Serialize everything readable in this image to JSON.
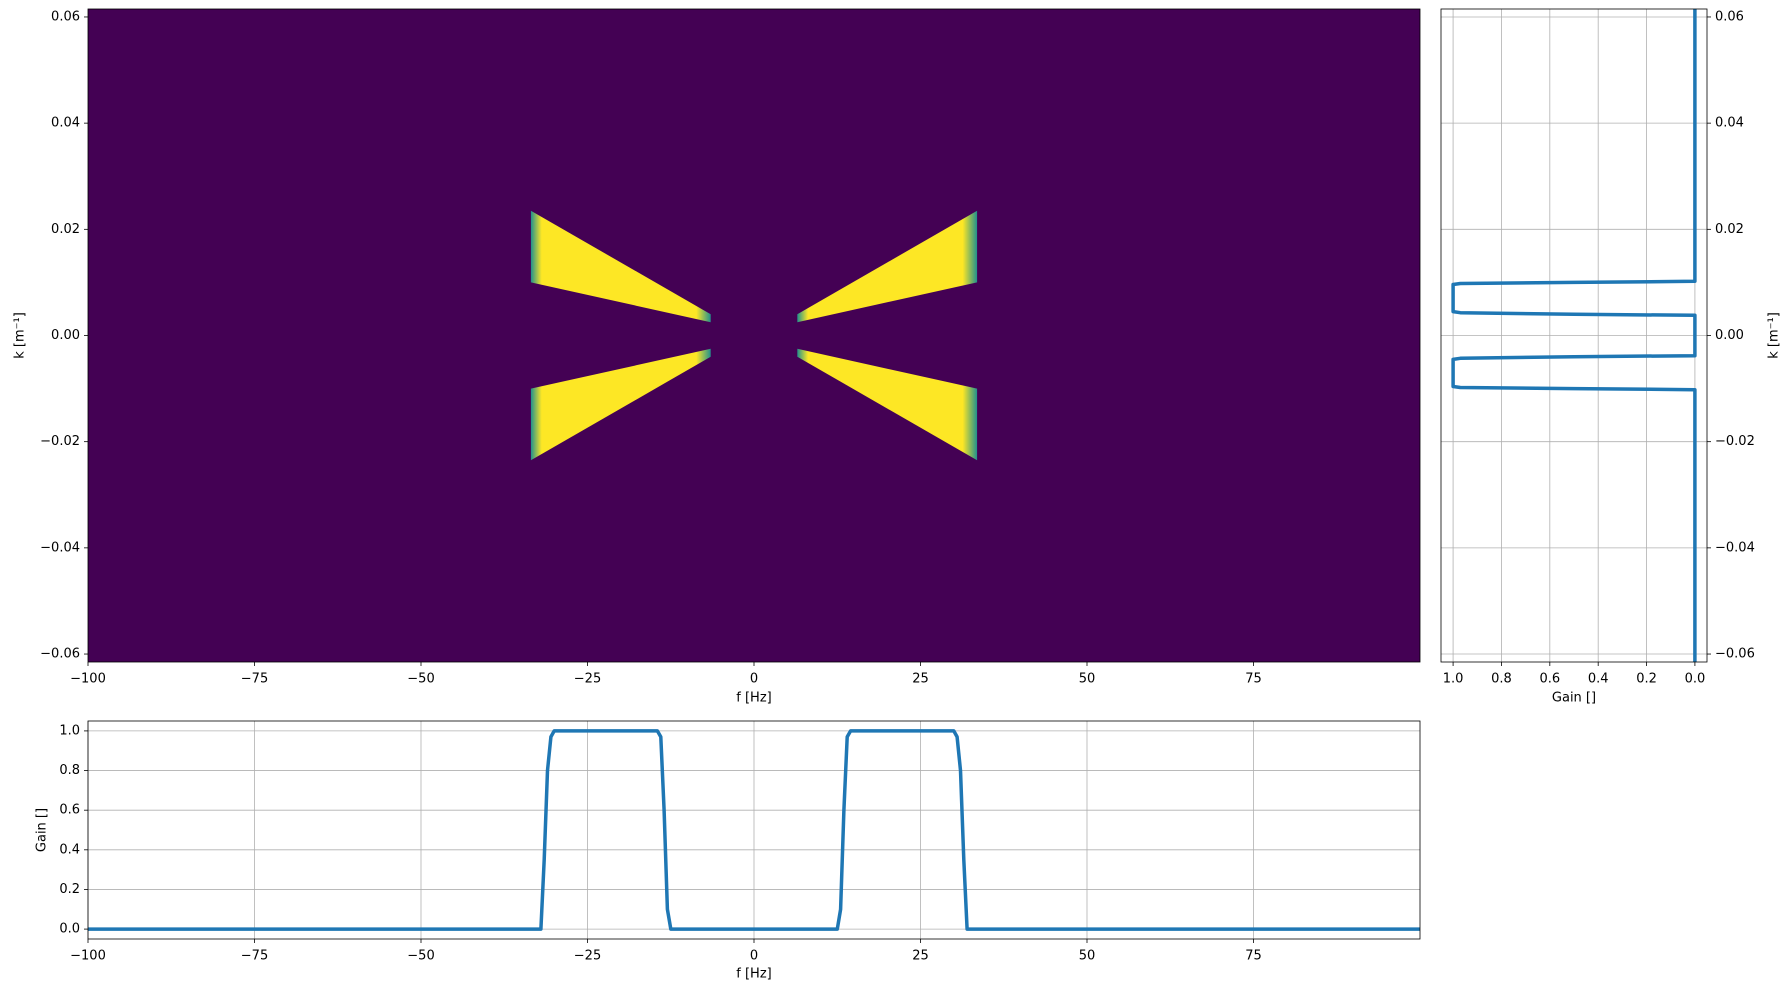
{
  "chart_data": [
    {
      "panel": "fk-filter-map",
      "type": "heatmap",
      "xlabel": "f [Hz]",
      "ylabel": "k [m⁻¹]",
      "xlim": [
        -100,
        100
      ],
      "ylim": [
        -0.0615,
        0.0615
      ],
      "xticks": [
        -100,
        -75,
        -50,
        -25,
        0,
        25,
        50,
        75
      ],
      "xtick_labels": [
        "−100",
        "−75",
        "−50",
        "−25",
        "0",
        "25",
        "50",
        "75"
      ],
      "yticks": [
        -0.06,
        -0.04,
        -0.02,
        0.0,
        0.02,
        0.04,
        0.06
      ],
      "ytick_labels": [
        "−0.06",
        "−0.04",
        "−0.02",
        "0.00",
        "0.02",
        "0.04",
        "0.06"
      ],
      "grid": false,
      "colormap": {
        "low": "#440154",
        "high": "#fde725",
        "edge_mid": "#21908d"
      },
      "regions": [
        {
          "vertices": [
            [
              6.5,
              0.0025
            ],
            [
              33.5,
              0.01
            ],
            [
              33.5,
              0.0235
            ],
            [
              6.5,
              0.004
            ]
          ]
        },
        {
          "vertices": [
            [
              -6.5,
              0.0025
            ],
            [
              -33.5,
              0.01
            ],
            [
              -33.5,
              0.0235
            ],
            [
              -6.5,
              0.004
            ]
          ]
        },
        {
          "vertices": [
            [
              6.5,
              -0.0025
            ],
            [
              33.5,
              -0.01
            ],
            [
              33.5,
              -0.0235
            ],
            [
              6.5,
              -0.004
            ]
          ]
        },
        {
          "vertices": [
            [
              -6.5,
              -0.0025
            ],
            [
              -33.5,
              -0.01
            ],
            [
              -33.5,
              -0.0235
            ],
            [
              -6.5,
              -0.004
            ]
          ]
        }
      ],
      "value_inside": 1.0,
      "value_outside": 0.0
    },
    {
      "panel": "k-gain-profile",
      "type": "line",
      "xlabel": "Gain []",
      "ylabel": "k [m⁻¹]",
      "xlim": [
        1.05,
        -0.05
      ],
      "ylim": [
        -0.0615,
        0.0615
      ],
      "xticks": [
        1.0,
        0.8,
        0.6,
        0.4,
        0.2,
        0.0
      ],
      "xtick_labels": [
        "1.0",
        "0.8",
        "0.6",
        "0.4",
        "0.2",
        "0.0"
      ],
      "yticks": [
        -0.06,
        -0.04,
        -0.02,
        0.0,
        0.02,
        0.04,
        0.06
      ],
      "ytick_labels": [
        "−0.06",
        "−0.04",
        "−0.02",
        "0.00",
        "0.02",
        "0.04",
        "0.06"
      ],
      "grid": true,
      "color": "#1f77b4",
      "k": [
        -0.0615,
        -0.0102,
        -0.01,
        -0.0098,
        -0.0096,
        -0.0045,
        -0.0043,
        -0.004,
        -0.0038,
        0.0038,
        0.004,
        0.0043,
        0.0045,
        0.0096,
        0.0098,
        0.01,
        0.0102,
        0.0615
      ],
      "gain": [
        0.0,
        0.0,
        0.5,
        0.97,
        1.0,
        1.0,
        0.97,
        0.5,
        0.0,
        0.0,
        0.5,
        0.97,
        1.0,
        1.0,
        0.97,
        0.5,
        0.0,
        0.0
      ]
    },
    {
      "panel": "f-gain-profile",
      "type": "line",
      "xlabel": "f [Hz]",
      "ylabel": "Gain []",
      "xlim": [
        -100,
        100
      ],
      "ylim": [
        -0.05,
        1.05
      ],
      "xticks": [
        -100,
        -75,
        -50,
        -25,
        0,
        25,
        50,
        75
      ],
      "xtick_labels": [
        "−100",
        "−75",
        "−50",
        "−25",
        "0",
        "25",
        "50",
        "75"
      ],
      "yticks": [
        0.0,
        0.2,
        0.4,
        0.6,
        0.8,
        1.0
      ],
      "ytick_labels": [
        "0.0",
        "0.2",
        "0.4",
        "0.6",
        "0.8",
        "1.0"
      ],
      "grid": true,
      "color": "#1f77b4",
      "f": [
        -100,
        -32,
        -31.5,
        -31,
        -30.5,
        -30,
        -14.5,
        -14,
        -13.5,
        -13,
        -12.5,
        12.5,
        13,
        13.5,
        14,
        14.5,
        30,
        30.5,
        31,
        31.5,
        32,
        100
      ],
      "gain": [
        0.0,
        0.0,
        0.35,
        0.8,
        0.97,
        1.0,
        1.0,
        0.97,
        0.6,
        0.1,
        0.0,
        0.0,
        0.1,
        0.6,
        0.97,
        1.0,
        1.0,
        0.97,
        0.8,
        0.35,
        0.0,
        0.0
      ]
    }
  ]
}
